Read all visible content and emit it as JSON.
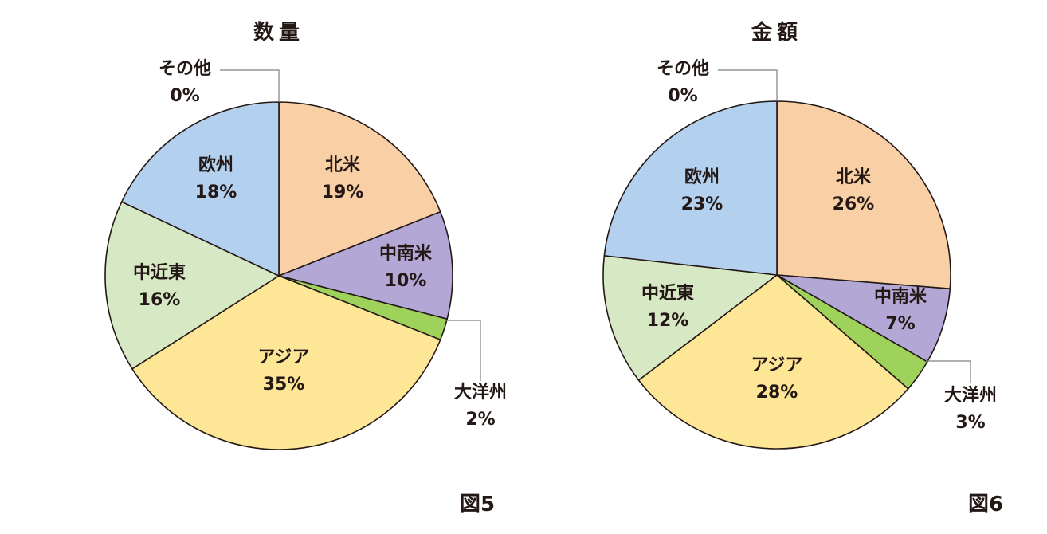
{
  "chart_data": [
    {
      "type": "pie",
      "title": "数量",
      "figure_label": "図5",
      "categories": [
        "北米",
        "中南米",
        "大洋州",
        "アジア",
        "中近東",
        "欧州",
        "その他"
      ],
      "values": [
        19,
        10,
        2,
        35,
        16,
        18,
        0
      ],
      "unit": "%",
      "colors": [
        "#f9cfa6",
        "#b3a7d6",
        "#9ed25a",
        "#fee697",
        "#d6e8c4",
        "#b3d1ee",
        "#ffffff"
      ],
      "start_angle": "12 o'clock",
      "direction": "clockwise",
      "labels": {
        "north_america": {
          "name": "北米",
          "pct": "19%"
        },
        "latin_america": {
          "name": "中南米",
          "pct": "10%"
        },
        "oceania": {
          "name": "大洋州",
          "pct": "2%"
        },
        "asia": {
          "name": "アジア",
          "pct": "35%"
        },
        "middle_east": {
          "name": "中近東",
          "pct": "16%"
        },
        "europe": {
          "name": "欧州",
          "pct": "18%"
        },
        "other": {
          "name": "その他",
          "pct": "0%"
        }
      }
    },
    {
      "type": "pie",
      "title": "金額",
      "figure_label": "図6",
      "categories": [
        "北米",
        "中南米",
        "大洋州",
        "アジア",
        "中近東",
        "欧州",
        "その他"
      ],
      "values": [
        26,
        7,
        3,
        28,
        12,
        23,
        0
      ],
      "unit": "%",
      "colors": [
        "#f9cfa6",
        "#b3a7d6",
        "#9ed25a",
        "#fee697",
        "#d6e8c4",
        "#b3d1ee",
        "#ffffff"
      ],
      "start_angle": "12 o'clock",
      "direction": "clockwise",
      "labels": {
        "north_america": {
          "name": "北米",
          "pct": "26%"
        },
        "latin_america": {
          "name": "中南米",
          "pct": "7%"
        },
        "oceania": {
          "name": "大洋州",
          "pct": "3%"
        },
        "asia": {
          "name": "アジア",
          "pct": "28%"
        },
        "middle_east": {
          "name": "中近東",
          "pct": "12%"
        },
        "europe": {
          "name": "欧州",
          "pct": "23%"
        },
        "other": {
          "name": "その他",
          "pct": "0%"
        }
      }
    }
  ]
}
